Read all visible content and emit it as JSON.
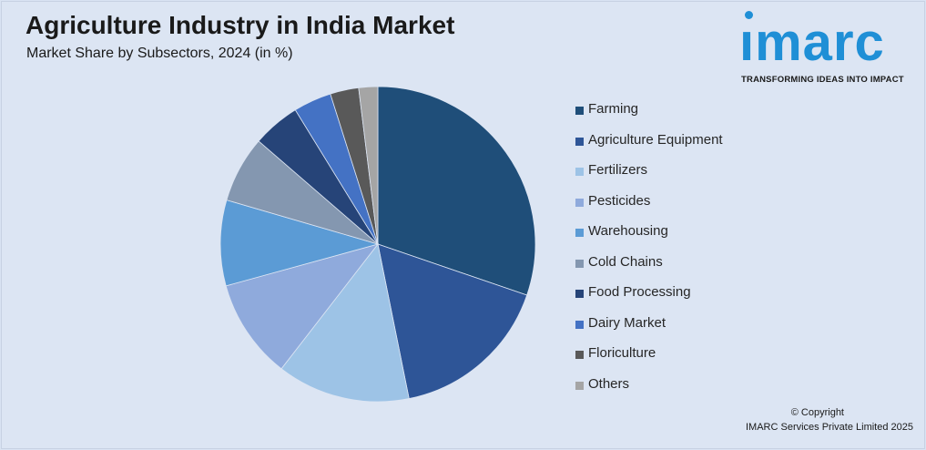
{
  "header": {
    "title": "Agriculture Industry in India Market",
    "subtitle": "Market Share by Subsectors, 2024 (in %)"
  },
  "logo": {
    "word": "ımarc",
    "tagline": "TRANSFORMING IDEAS INTO IMPACT",
    "color": "#1f8fd6"
  },
  "chart_data": {
    "type": "pie",
    "title": "Agriculture Industry in India Market",
    "subtitle": "Market Share by Subsectors, 2024 (in %)",
    "legend_position": "right",
    "categories": [
      "Farming",
      "Agriculture Equipment",
      "Fertilizers",
      "Pesticides",
      "Warehousing",
      "Cold Chains",
      "Food Processing",
      "Dairy Market",
      "Floriculture",
      "Others"
    ],
    "values": [
      31.0,
      17.0,
      14.0,
      10.5,
      9.0,
      7.0,
      5.0,
      4.0,
      3.0,
      2.0
    ],
    "colors": [
      "#1f4e79",
      "#2e5597",
      "#9dc3e6",
      "#8faadc",
      "#5b9bd5",
      "#8497b0",
      "#264478",
      "#4472c4",
      "#595959",
      "#a5a5a5"
    ]
  },
  "footer": {
    "copyright_line1": "© Copyright",
    "copyright_line2": "IMARC Services Private Limited 2025"
  }
}
